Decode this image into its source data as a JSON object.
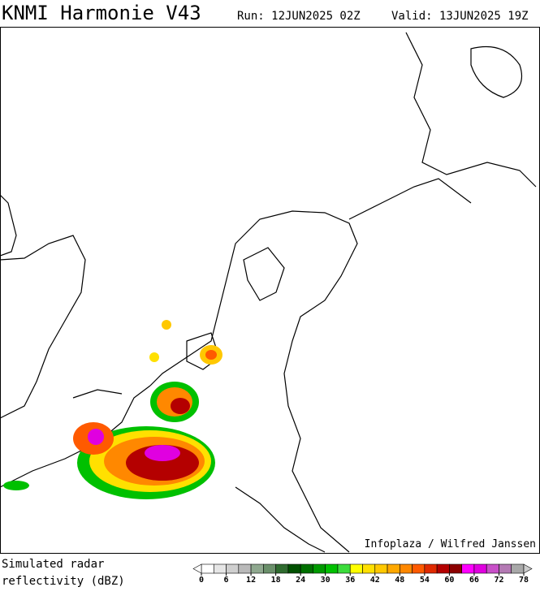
{
  "header": {
    "title": "KNMI Harmonie V43",
    "run": "Run: 12JUN2025 02Z",
    "valid": "Valid: 13JUN2025 19Z"
  },
  "credit": "Infoplaza / Wilfred Janssen",
  "legend": {
    "label": [
      "Simulated radar",
      "reflectivity (dBZ)"
    ],
    "range": [
      0,
      78
    ],
    "ticks": [
      0,
      6,
      12,
      18,
      24,
      30,
      36,
      42,
      48,
      54,
      60,
      66,
      72,
      78
    ],
    "colors": [
      "#ffffff",
      "#e6e6e6",
      "#cfcfcf",
      "#b9b9b9",
      "#8fa88f",
      "#6a8f6a",
      "#2f6b2f",
      "#005000",
      "#007000",
      "#009a00",
      "#00c000",
      "#3cdc3c",
      "#ffff00",
      "#ffe000",
      "#ffc800",
      "#ffa800",
      "#ff8800",
      "#ff5a00",
      "#e02a00",
      "#b40000",
      "#8c0000",
      "#ff00ff",
      "#e000e0",
      "#c850c8",
      "#b47ab4",
      "#a8a8a8"
    ],
    "under_color": "#ffffff",
    "over_color": "#cccccc"
  }
}
